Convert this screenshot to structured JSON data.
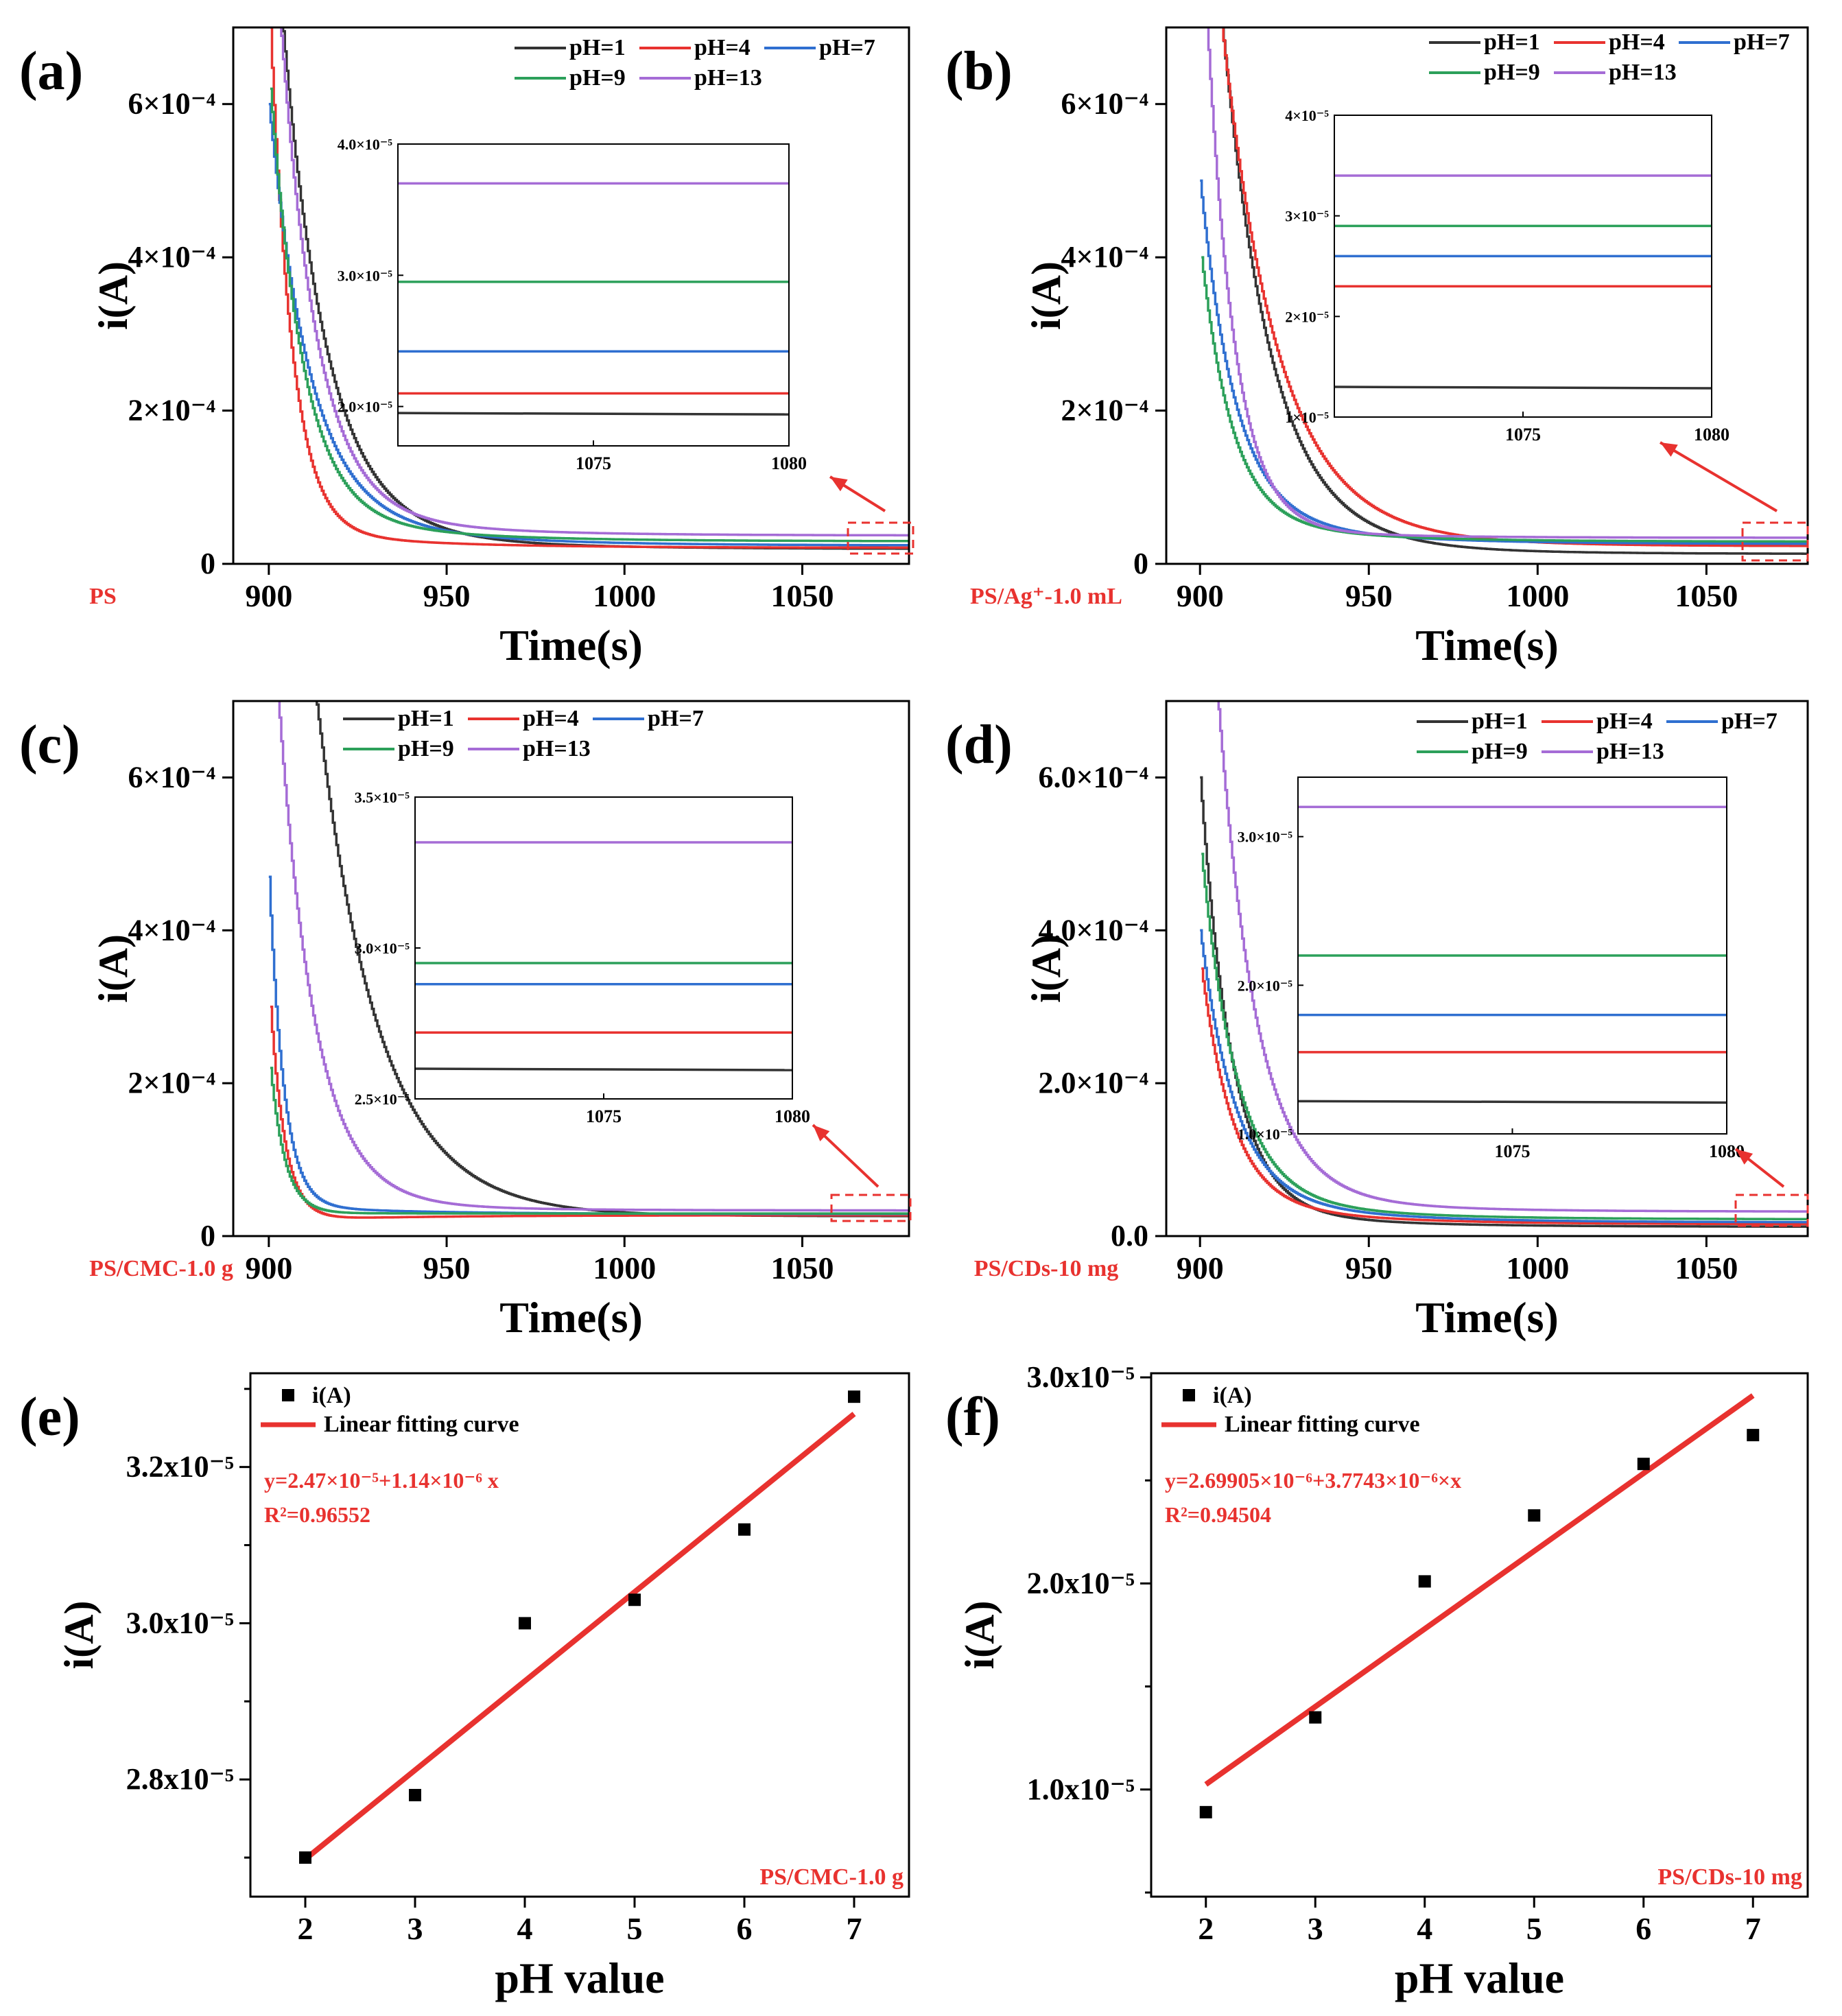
{
  "figure": {
    "panels": [
      "(a)",
      "(b)",
      "(c)",
      "(d)",
      "(e)",
      "(f)"
    ]
  },
  "chart_data": [
    {
      "id": "a",
      "label": "(a)",
      "type": "line",
      "sample": "PS",
      "xlabel": "Time(s)",
      "ylabel": "i(A)",
      "xlim": [
        890,
        1080
      ],
      "ylim": [
        0,
        0.0007
      ],
      "xticks": [
        "900",
        "950",
        "1000",
        "1050"
      ],
      "yticks": [
        "0",
        "2×10⁻⁴",
        "4×10⁻⁴",
        "6×10⁻⁴"
      ],
      "legend": [
        "pH=1",
        "pH=4",
        "pH=7",
        "pH=9",
        "pH=13"
      ],
      "series_colors": [
        "#333333",
        "#e8322f",
        "#2f6fd0",
        "#2ca05a",
        "#a56cd6"
      ],
      "decay_profile": {
        "start": [
          0.00095,
          0.0007,
          0.0006,
          0.00062,
          0.00095
        ],
        "tau": [
          12,
          6,
          11,
          9,
          10
        ],
        "offset_start": [
          7e-05,
          4.5e-05,
          8e-05,
          7e-05,
          8e-05
        ],
        "offset_end": [
          1.95e-05,
          2.1e-05,
          2.4e-05,
          2.95e-05,
          3.7e-05
        ]
      },
      "inset": {
        "xlim": [
          1070,
          1080
        ],
        "ylim": [
          1.7e-05,
          4e-05
        ],
        "xticks": [
          "1075",
          "1080"
        ],
        "yticks": [
          "2.0×10⁻⁵",
          "3.0×10⁻⁵",
          "4.0×10⁻⁵"
        ],
        "values": [
          1.95e-05,
          2.1e-05,
          2.42e-05,
          2.95e-05,
          3.7e-05
        ]
      }
    },
    {
      "id": "b",
      "label": "(b)",
      "type": "line",
      "sample": "PS/Ag⁺-1.0 mL",
      "xlabel": "Time(s)",
      "ylabel": "i(A)",
      "xlim": [
        890,
        1080
      ],
      "ylim": [
        0,
        0.0007
      ],
      "xticks": [
        "900",
        "950",
        "1000",
        "1050"
      ],
      "yticks": [
        "0",
        "2×10⁻⁴",
        "4×10⁻⁴",
        "6×10⁻⁴"
      ],
      "legend": [
        "pH=1",
        "pH=4",
        "pH=7",
        "pH=9",
        "pH=13"
      ],
      "series_colors": [
        "#333333",
        "#e8322f",
        "#2f6fd0",
        "#2ca05a",
        "#a56cd6"
      ],
      "decay_profile": {
        "start": [
          0.0011,
          0.001,
          0.0005,
          0.0004,
          0.0009
        ],
        "tau": [
          14,
          16,
          10,
          9,
          8
        ],
        "offset_start": [
          6e-05,
          8e-05,
          7e-05,
          6e-05,
          5e-05
        ],
        "offset_end": [
          1.3e-05,
          2.3e-05,
          2.6e-05,
          2.9e-05,
          3.4e-05
        ]
      },
      "inset": {
        "xlim": [
          1070,
          1080
        ],
        "ylim": [
          1e-05,
          4e-05
        ],
        "xticks": [
          "1075",
          "1080"
        ],
        "yticks": [
          "1×10⁻⁵",
          "2×10⁻⁵",
          "3×10⁻⁵",
          "4×10⁻⁵"
        ],
        "values": [
          1.3e-05,
          2.3e-05,
          2.6e-05,
          2.9e-05,
          3.4e-05
        ]
      }
    },
    {
      "id": "c",
      "label": "(c)",
      "type": "line",
      "sample": "PS/CMC-1.0 g",
      "xlabel": "Time(s)",
      "ylabel": "i(A)",
      "xlim": [
        890,
        1080
      ],
      "ylim": [
        0,
        0.0007
      ],
      "xticks": [
        "900",
        "950",
        "1000",
        "1050"
      ],
      "yticks": [
        "0",
        "2×10⁻⁴",
        "4×10⁻⁴",
        "6×10⁻⁴"
      ],
      "legend": [
        "pH=1",
        "pH=4",
        "pH=7",
        "pH=9",
        "pH=13"
      ],
      "series_colors": [
        "#333333",
        "#e8322f",
        "#2f6fd0",
        "#2ca05a",
        "#a56cd6"
      ],
      "decay_profile": {
        "start": [
          0.0015,
          0.0003,
          0.00047,
          0.00022,
          0.0009
        ],
        "tau": [
          17,
          4,
          4,
          4,
          10
        ],
        "offset_start": [
          4e-05,
          2e-05,
          4e-05,
          3e-05,
          5e-05
        ],
        "offset_end": [
          2.6e-05,
          2.72e-05,
          2.88e-05,
          2.95e-05,
          3.35e-05
        ]
      },
      "inset": {
        "xlim": [
          1070,
          1080
        ],
        "ylim": [
          2.5e-05,
          3.5e-05
        ],
        "xticks": [
          "1075",
          "1080"
        ],
        "yticks": [
          "2.5×10⁻⁵",
          "3.0×10⁻⁵",
          "3.5×10⁻⁵"
        ],
        "values": [
          2.6e-05,
          2.72e-05,
          2.88e-05,
          2.95e-05,
          3.35e-05
        ]
      }
    },
    {
      "id": "d",
      "label": "(d)",
      "type": "line",
      "sample": "PS/CDs-10 mg",
      "xlabel": "Time(s)",
      "ylabel": "i(A)",
      "xlim": [
        890,
        1080
      ],
      "ylim": [
        0,
        0.0007
      ],
      "xticks": [
        "900",
        "950",
        "1000",
        "1050"
      ],
      "yticks": [
        "0.0",
        "2.0×10⁻⁴",
        "4.0×10⁻⁴",
        "6.0×10⁻⁴"
      ],
      "legend": [
        "pH=1",
        "pH=4",
        "pH=7",
        "pH=9",
        "pH=13"
      ],
      "series_colors": [
        "#333333",
        "#e8322f",
        "#2f6fd0",
        "#2ca05a",
        "#a56cd6"
      ],
      "decay_profile": {
        "start": [
          0.0006,
          0.00035,
          0.0004,
          0.0005,
          0.0011
        ],
        "tau": [
          9,
          9,
          10,
          10,
          11
        ],
        "offset_start": [
          4e-05,
          5e-05,
          6e-05,
          6e-05,
          7e-05
        ],
        "offset_end": [
          1.22e-05,
          1.55e-05,
          1.8e-05,
          2.2e-05,
          3.2e-05
        ]
      },
      "inset": {
        "xlim": [
          1070,
          1080
        ],
        "ylim": [
          1e-05,
          3.4e-05
        ],
        "xticks": [
          "1075",
          "1080"
        ],
        "yticks": [
          "1.0×10⁻⁵",
          "2.0×10⁻⁵",
          "3.0×10⁻⁵"
        ],
        "values": [
          1.22e-05,
          1.55e-05,
          1.8e-05,
          2.2e-05,
          3.2e-05
        ]
      }
    },
    {
      "id": "e",
      "label": "(e)",
      "type": "scatter",
      "sample": "PS/CMC-1.0 g",
      "xlabel": "pH value",
      "ylabel": "i(A)",
      "xlim": [
        1.5,
        7.5
      ],
      "ylim": [
        2.65e-05,
        3.32e-05
      ],
      "xticks": [
        "2",
        "3",
        "4",
        "5",
        "6",
        "7"
      ],
      "ytick_values": [
        2.8e-05,
        3e-05,
        3.2e-05
      ],
      "yticks": [
        "2.8x10⁻⁵",
        "3.0x10⁻⁵",
        "3.2x10⁻⁵"
      ],
      "x": [
        2,
        3,
        4,
        5,
        6,
        7
      ],
      "y": [
        2.7e-05,
        2.78e-05,
        3e-05,
        3.03e-05,
        3.12e-05,
        3.29e-05
      ],
      "fit": {
        "intercept": 2.47e-05,
        "slope": 1.14e-06,
        "r2": 0.96552
      },
      "legend": {
        "points": "i(A)",
        "line": "Linear fitting curve"
      },
      "equation": "y=2.47×10⁻⁵+1.14×10⁻⁶ x",
      "r2_text": "R²=0.96552"
    },
    {
      "id": "f",
      "label": "(f)",
      "type": "scatter",
      "sample": "PS/CDs-10 mg",
      "xlabel": "pH value",
      "ylabel": "i(A)",
      "xlim": [
        1.5,
        7.5
      ],
      "ylim": [
        4.8e-06,
        3.02e-05
      ],
      "xticks": [
        "2",
        "3",
        "4",
        "5",
        "6",
        "7"
      ],
      "ytick_values": [
        1e-05,
        2e-05,
        3e-05
      ],
      "yticks": [
        "1.0x10⁻⁵",
        "2.0x10⁻⁵",
        "3.0x10⁻⁵"
      ],
      "x": [
        2,
        3,
        4,
        5,
        6,
        7
      ],
      "y": [
        8.9e-06,
        1.35e-05,
        2.01e-05,
        2.33e-05,
        2.58e-05,
        2.72e-05
      ],
      "fit": {
        "intercept": 2.69905e-06,
        "slope": 3.7743e-06,
        "r2": 0.94504
      },
      "legend": {
        "points": "i(A)",
        "line": "Linear fitting curve"
      },
      "equation": "y=2.69905×10⁻⁶+3.7743×10⁻⁶×x",
      "r2_text": "R²=0.94504"
    }
  ]
}
